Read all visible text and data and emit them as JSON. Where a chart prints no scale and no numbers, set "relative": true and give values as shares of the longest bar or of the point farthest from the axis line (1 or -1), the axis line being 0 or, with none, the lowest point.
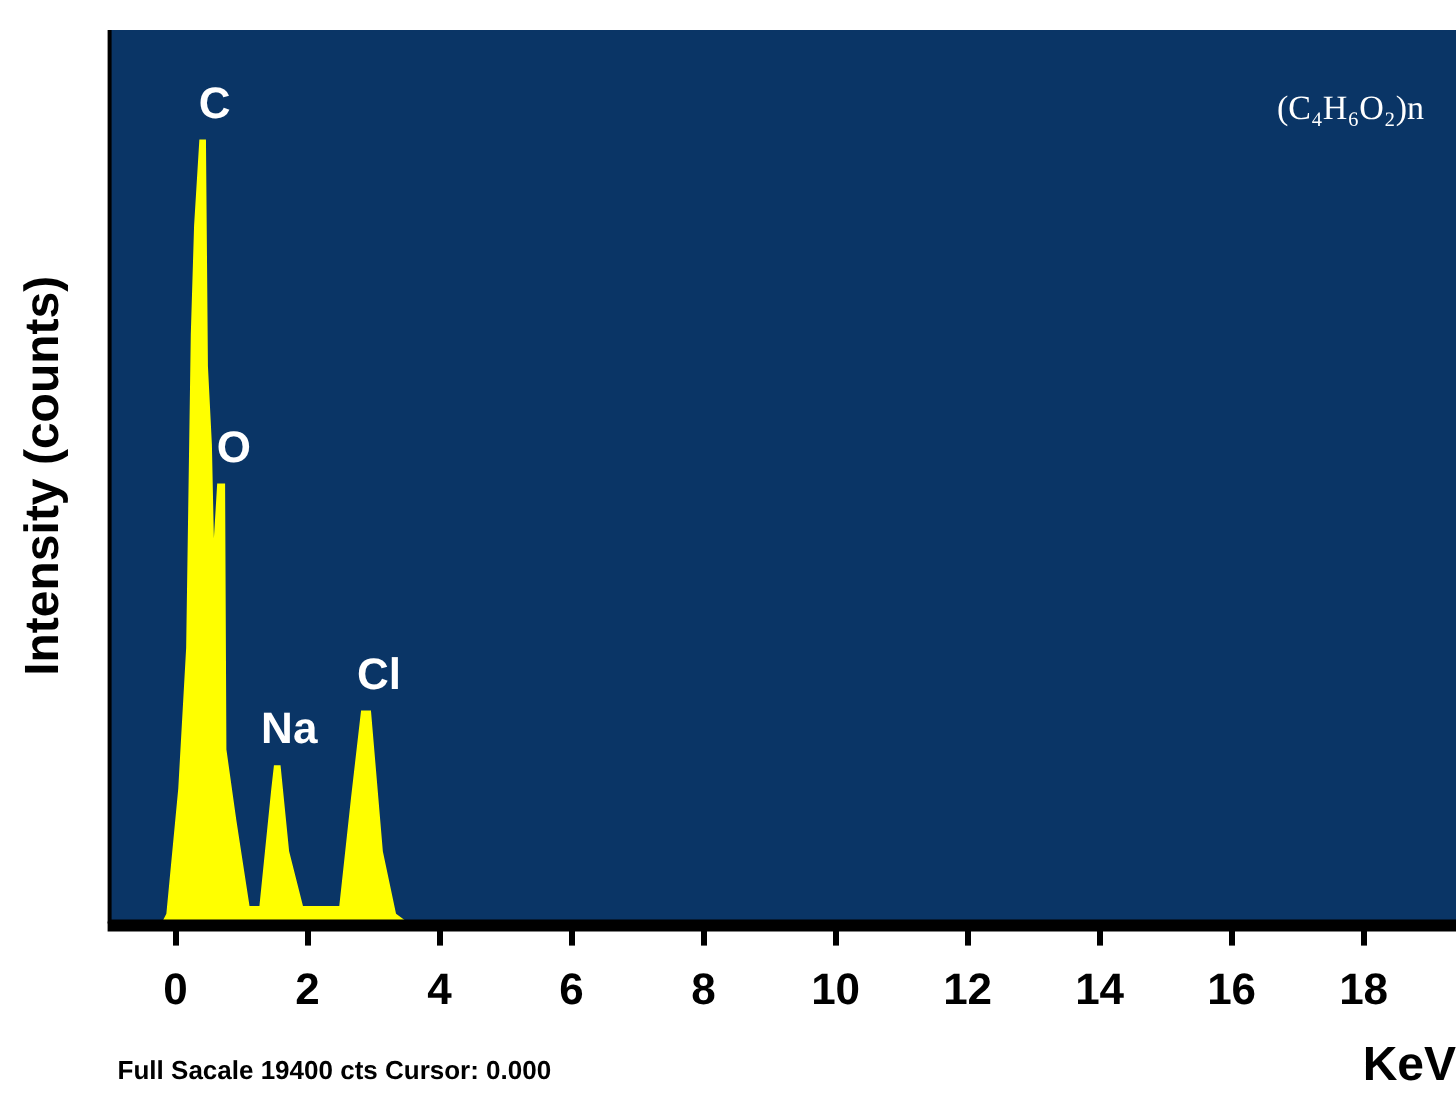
{
  "chart_data": {
    "type": "area",
    "relative": true,
    "xlabel": "KeV",
    "ylabel": "Intensity (counts)",
    "xlim": [
      -1,
      19.4
    ],
    "xticks": [
      0,
      2,
      4,
      6,
      8,
      10,
      12,
      14,
      16,
      18
    ],
    "grid": false,
    "legend": false,
    "series": [
      {
        "color": "#ffff00",
        "x": [
          -0.2,
          -0.14,
          0.04,
          0.16,
          0.23,
          0.28,
          0.36,
          0.46,
          0.49,
          0.55,
          0.58,
          0.63,
          0.75,
          0.77,
          0.92,
          1.12,
          1.27,
          1.45,
          1.49,
          1.59,
          1.72,
          1.93,
          2.48,
          2.66,
          2.81,
          2.96,
          3.14,
          3.34,
          3.5
        ],
        "values": [
          0,
          0.01,
          0.17,
          0.35,
          0.75,
          0.89,
          1.0,
          1.0,
          0.71,
          0.61,
          0.49,
          0.56,
          0.56,
          0.22,
          0.13,
          0.02,
          0.02,
          0.17,
          0.2,
          0.2,
          0.09,
          0.02,
          0.02,
          0.16,
          0.27,
          0.27,
          0.09,
          0.01,
          0
        ]
      }
    ],
    "annotations": [
      {
        "text": "C",
        "x": 0.41,
        "y": 1.0
      },
      {
        "text": "O",
        "x": 0.7,
        "y": 0.56
      },
      {
        "text": "Na",
        "x": 1.54,
        "y": 0.2
      },
      {
        "text": "Cl",
        "x": 2.9,
        "y": 0.27
      },
      "(C₄H₆O₂)n",
      "Full Sacale 19400 cts Cursor: 0.000"
    ]
  }
}
